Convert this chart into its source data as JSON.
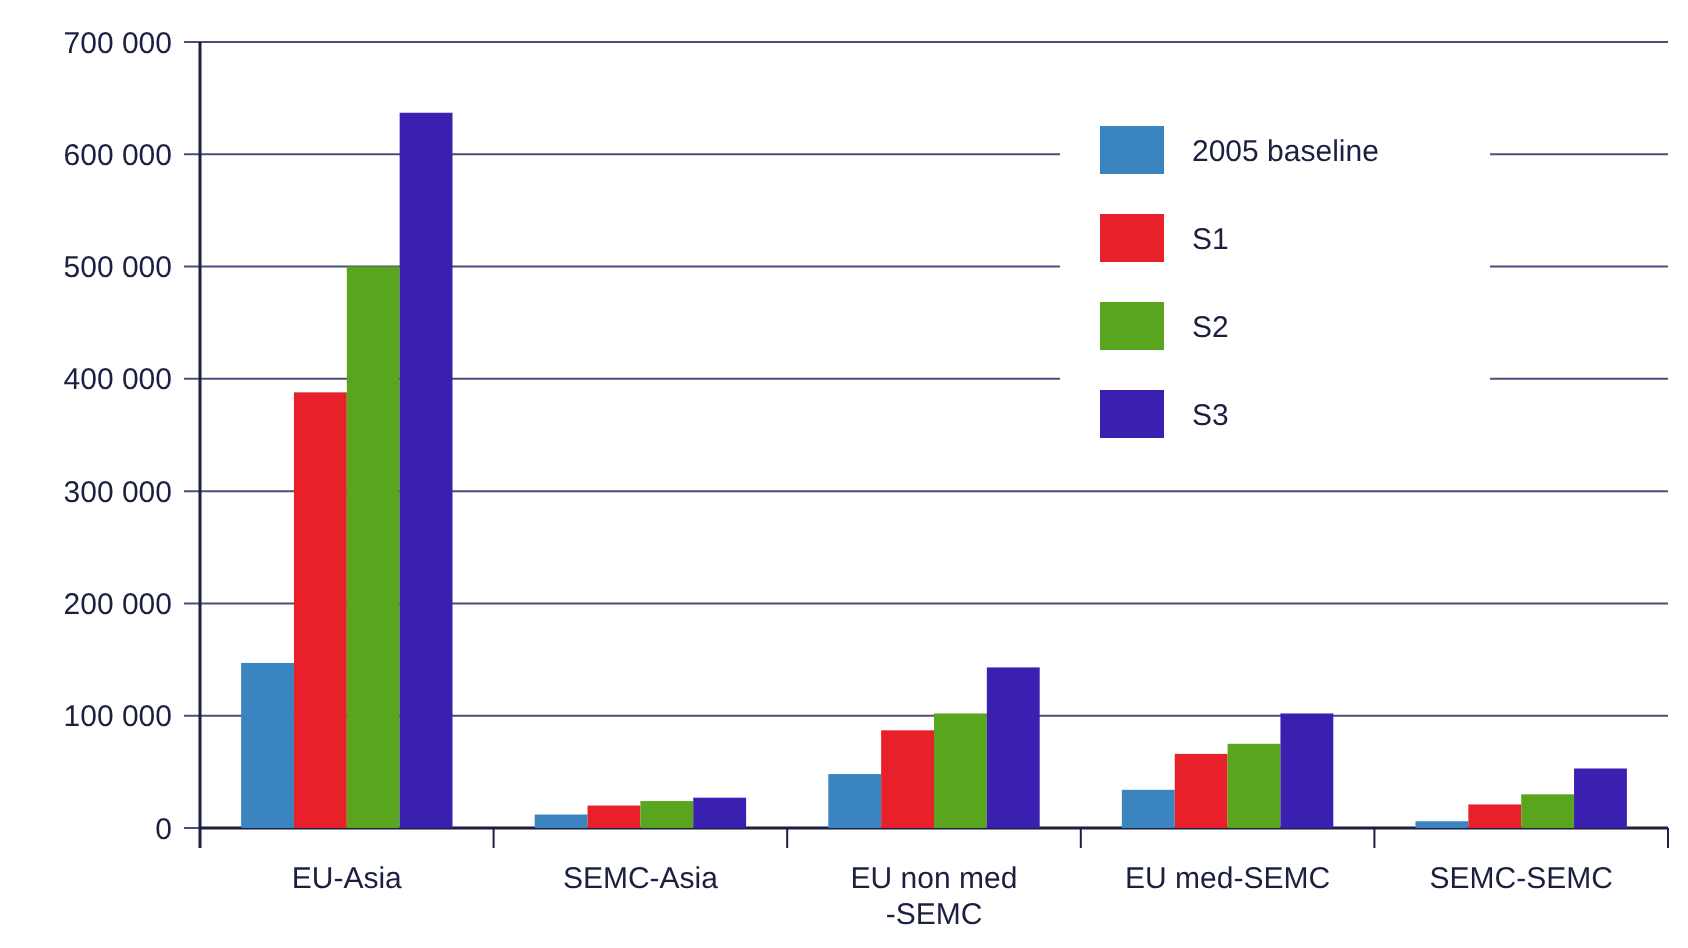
{
  "chart_data": {
    "type": "bar",
    "categories": [
      "EU-Asia",
      "SEMC-Asia",
      "EU non med\n-SEMC",
      "EU med-SEMC",
      "SEMC-SEMC"
    ],
    "series": [
      {
        "name": "2005 baseline",
        "color": "#3a84c0",
        "values": [
          147000,
          12000,
          48000,
          34000,
          6000
        ]
      },
      {
        "name": "S1",
        "color": "#e8202a",
        "values": [
          388000,
          20000,
          87000,
          66000,
          21000
        ]
      },
      {
        "name": "S2",
        "color": "#5aa51e",
        "values": [
          500000,
          24000,
          102000,
          75000,
          30000
        ]
      },
      {
        "name": "S3",
        "color": "#3b1fb0",
        "values": [
          637000,
          27000,
          143000,
          102000,
          53000
        ]
      }
    ],
    "ylim": [
      0,
      700000
    ],
    "yticks": [
      {
        "value": 0,
        "label": "0"
      },
      {
        "value": 100000,
        "label": "100 000"
      },
      {
        "value": 200000,
        "label": "200 000"
      },
      {
        "value": 300000,
        "label": "300 000"
      },
      {
        "value": 400000,
        "label": "400 000"
      },
      {
        "value": 500000,
        "label": "500 000"
      },
      {
        "value": 600000,
        "label": "600 000"
      },
      {
        "value": 700000,
        "label": "700 000"
      }
    ],
    "grid": "y",
    "legend": "top right"
  }
}
